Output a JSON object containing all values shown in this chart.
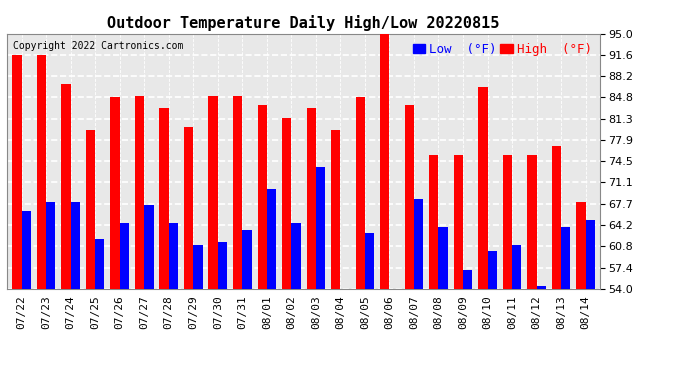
{
  "title": "Outdoor Temperature Daily High/Low 20220815",
  "copyright": "Copyright 2022 Cartronics.com",
  "legend_low_label": "Low  (°F)",
  "legend_high_label": "High  (°F)",
  "dates": [
    "07/22",
    "07/23",
    "07/24",
    "07/25",
    "07/26",
    "07/27",
    "07/28",
    "07/29",
    "07/30",
    "07/31",
    "08/01",
    "08/02",
    "08/03",
    "08/04",
    "08/05",
    "08/06",
    "08/07",
    "08/08",
    "08/09",
    "08/10",
    "08/11",
    "08/12",
    "08/13",
    "08/14"
  ],
  "highs": [
    91.6,
    91.6,
    87.0,
    79.5,
    84.8,
    85.0,
    83.0,
    80.0,
    85.0,
    85.0,
    83.5,
    81.5,
    83.0,
    79.5,
    84.8,
    95.0,
    83.5,
    75.5,
    75.5,
    86.5,
    75.5,
    75.5,
    77.0,
    68.0
  ],
  "lows": [
    66.5,
    68.0,
    68.0,
    62.0,
    64.5,
    67.5,
    64.5,
    61.0,
    61.5,
    63.5,
    70.0,
    64.5,
    73.5,
    54.0,
    63.0,
    54.0,
    68.5,
    64.0,
    57.0,
    60.0,
    61.0,
    54.5,
    64.0,
    65.0
  ],
  "high_color": "#ff0000",
  "low_color": "#0000ff",
  "bg_color": "#ffffff",
  "plot_bg_color": "#e8e8e8",
  "grid_color": "#ffffff",
  "ylim_min": 54.0,
  "ylim_max": 95.0,
  "yticks": [
    54.0,
    57.4,
    60.8,
    64.2,
    67.7,
    71.1,
    74.5,
    77.9,
    81.3,
    84.8,
    88.2,
    91.6,
    95.0
  ],
  "ytick_labels": [
    "54.0",
    "57.4",
    "60.8",
    "64.2",
    "67.7",
    "71.1",
    "74.5",
    "77.9",
    "81.3",
    "84.8",
    "88.2",
    "91.6",
    "95.0"
  ],
  "title_fontsize": 11,
  "copyright_fontsize": 7,
  "legend_fontsize": 9,
  "tick_fontsize": 8,
  "bar_width": 0.38
}
